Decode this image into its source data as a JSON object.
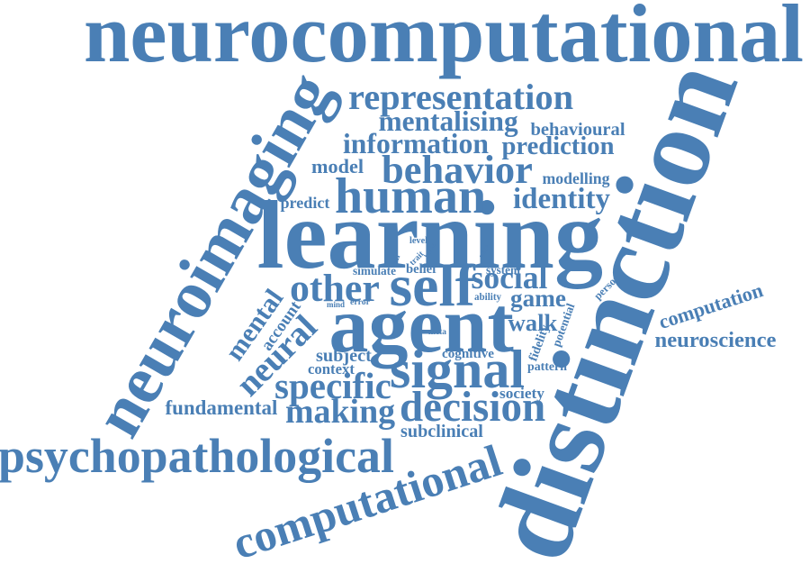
{
  "word_color": "#4a7fb5",
  "background": "#ffffff",
  "words": {
    "neurocomputational": "neurocomputational",
    "distinction": "distinction",
    "neuroimaging": "neuroimaging",
    "psychopathological": "psychopathological",
    "computational_large": "computational",
    "learning": "learning",
    "agent": "agent",
    "self": "self",
    "other": "other",
    "human": "human",
    "behavior": "behavior",
    "signal": "signal",
    "decision": "decision",
    "making": "making",
    "specific": "specific",
    "neural": "neural",
    "representation": "representation",
    "mentalising": "mentalising",
    "behavioural": "behavioural",
    "information": "information",
    "prediction": "prediction",
    "model": "model",
    "modelling": "modelling",
    "predict": "predict",
    "identity": "identity",
    "social": "social",
    "game": "game",
    "walk": "walk",
    "mental": "mental",
    "account": "account",
    "subject": "subject",
    "context": "context",
    "fundamental": "fundamental",
    "subclinical": "subclinical",
    "society": "society",
    "pattern": "pattern",
    "cognitive": "cognitive",
    "computation": "computation",
    "neuroscience": "neuroscience",
    "potential": "potential",
    "fidelity": "fidelity",
    "person": "person",
    "simulate": "simulate",
    "belief": "belief",
    "system": "system",
    "ability": "ability",
    "mind": "mind",
    "error": "error",
    "meta": "meta",
    "level": "level",
    "brain": "brain",
    "trait": "trait",
    "cell": "cell",
    "state": "state"
  }
}
